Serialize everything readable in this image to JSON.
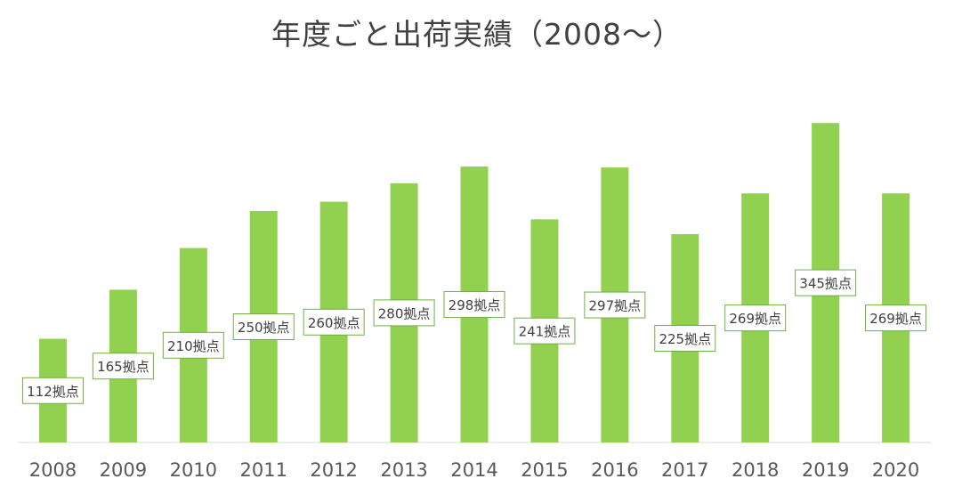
{
  "title": "年度ごと出荷実績（2008～）",
  "colors": {
    "bar": "#92d050",
    "label_border": "#70ad47",
    "axis_line": "#d9d9d9",
    "tick_text": "#595959",
    "label_text": "#404040"
  },
  "chart_data": {
    "type": "bar",
    "title": "年度ごと出荷実績（2008～）",
    "xlabel": "",
    "ylabel": "",
    "grid": false,
    "legend": "none",
    "ylim": [
      0,
      360
    ],
    "categories": [
      "2008",
      "2009",
      "2010",
      "2011",
      "2012",
      "2013",
      "2014",
      "2015",
      "2016",
      "2017",
      "2018",
      "2019",
      "2020"
    ],
    "values": [
      112,
      165,
      210,
      250,
      260,
      280,
      298,
      241,
      297,
      225,
      269,
      345,
      269
    ],
    "data_labels": [
      "112拠点",
      "165拠点",
      "210拠点",
      "250拠点",
      "260拠点",
      "280拠点",
      "298拠点",
      "241拠点",
      "297拠点",
      "225拠点",
      "269拠点",
      "345拠点",
      "269拠点"
    ]
  }
}
